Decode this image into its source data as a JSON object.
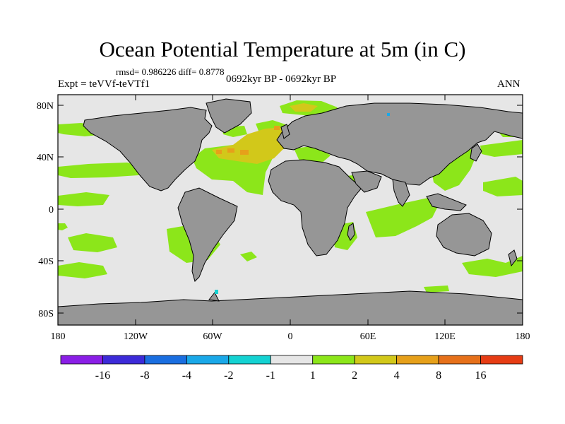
{
  "title": "Ocean Potential Temperature at 5m (in C)",
  "stats": "rmsd= 0.986226  diff= 0.8778",
  "experiment": "Expt = teVVf-teVTf1",
  "period": "0692kyr BP - 0692kyr BP",
  "season": "ANN",
  "map": {
    "lat_labels": [
      "80N",
      "40N",
      "0",
      "40S",
      "80S"
    ],
    "lon_labels": [
      "180",
      "120W",
      "60W",
      "0",
      "60E",
      "120E",
      "180"
    ]
  },
  "colorbar": {
    "labels": [
      "-16",
      "-8",
      "-4",
      "-2",
      "-1",
      "1",
      "2",
      "4",
      "8",
      "16"
    ],
    "colors": [
      "#8a1ee6",
      "#3c2ad8",
      "#1a6ee0",
      "#1aa8e8",
      "#14d2d2",
      "#e6e6e6",
      "#8ce61a",
      "#d2c81a",
      "#e6a01a",
      "#e6701a",
      "#e63c14"
    ]
  },
  "colors": {
    "land": "#969696",
    "ocean_neutral": "#e6e6e6",
    "warm_1_2": "#8ce61a",
    "warm_2_4": "#d2c81a",
    "warm_4_8": "#e6a01a"
  }
}
